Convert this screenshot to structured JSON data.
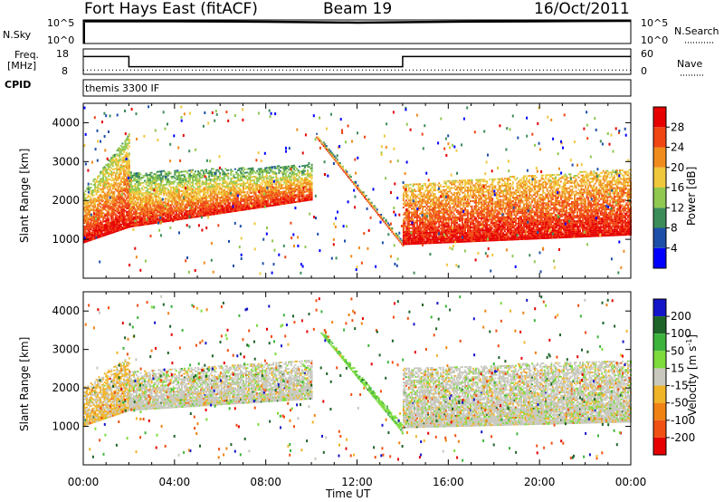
{
  "header": {
    "title": "Fort Hays East (fitACF)",
    "beam": "Beam 19",
    "date": "16/Oct/2011"
  },
  "top_panels": {
    "nsky_label": "N.Sky",
    "nsearch_label": "N.Search",
    "noise_ticks_left": [
      "10^5",
      "10^0"
    ],
    "noise_ticks_right": [
      "10^5",
      "10^0"
    ],
    "freq_label": "Freq.",
    "freq_unit": "[MHz]",
    "freq_ticks": [
      "18",
      "8"
    ],
    "nave_label": "Nave",
    "nave_ticks": [
      "60",
      "0"
    ],
    "cpid_label": "CPID",
    "cpid_text": "themis 3300 IF"
  },
  "colors": {
    "power_scale": [
      "#0000ff",
      "#1e4fa8",
      "#3c8c5a",
      "#90c850",
      "#f0c83c",
      "#f08c1e",
      "#f04614",
      "#e60000"
    ],
    "velocity_scale": [
      "#1414c8",
      "#1e6428",
      "#3cb43c",
      "#7ddc3c",
      "#c8c8be",
      "#f0b428",
      "#f08214",
      "#f05014",
      "#e60000"
    ]
  },
  "chart_data": [
    {
      "type": "line",
      "name": "noise",
      "series": [
        {
          "name": "N.Sky",
          "x": [
            "00:00",
            "04:00",
            "08:00",
            "12:00",
            "16:00",
            "20:00",
            "24:00"
          ],
          "values": [
            5.0,
            5.0,
            4.9,
            4.7,
            4.9,
            5.0,
            5.1
          ]
        },
        {
          "name": "N.Search"
        }
      ],
      "ylim": [
        0,
        5
      ]
    },
    {
      "type": "line",
      "name": "frequency",
      "series": [
        {
          "name": "Freq.",
          "x": [
            "00:00",
            "02:00",
            "02:00",
            "14:00",
            "14:00",
            "24:00"
          ],
          "values": [
            15,
            15,
            11,
            11,
            15,
            15
          ]
        },
        {
          "name": "Nave",
          "x": [
            "00:00",
            "24:00"
          ],
          "values": [
            10,
            10
          ]
        }
      ],
      "ylim_left": [
        8,
        18
      ],
      "ylim_right": [
        0,
        60
      ]
    },
    {
      "type": "heatmap",
      "name": "power",
      "xlabel": "",
      "ylabel": "Slant Range [km]",
      "y_ticks": [
        "1000",
        "2000",
        "3000",
        "4000"
      ],
      "xlim": [
        "00:00",
        "24:00"
      ],
      "ylim": [
        0,
        4500
      ],
      "colorbar_label": "Power [dB]",
      "colorbar_ticks": [
        "4",
        "8",
        "12",
        "16",
        "20",
        "24",
        "28"
      ],
      "colorbar_range": [
        0,
        32
      ],
      "bands": [
        {
          "t": [
            0.0,
            2.0
          ],
          "lower_km": [
            900,
            1300
          ],
          "upper_km": [
            2200,
            3700
          ],
          "near_db": 30,
          "far_db": 14
        },
        {
          "t": [
            2.0,
            10.0
          ],
          "lower_km": [
            1300,
            2000
          ],
          "upper_km": [
            2700,
            2900
          ],
          "near_db": 29,
          "far_db": 10
        },
        {
          "t": [
            10.2,
            14.0
          ],
          "lower_km": [
            3600,
            800
          ],
          "upper_km": [
            3700,
            900
          ],
          "near_db": 26,
          "far_db": 8
        },
        {
          "t": [
            14.0,
            24.0
          ],
          "lower_km": [
            850,
            1100
          ],
          "upper_km": [
            2400,
            2800
          ],
          "near_db": 30,
          "far_db": 18
        }
      ]
    },
    {
      "type": "heatmap",
      "name": "velocity",
      "xlabel": "Time UT",
      "ylabel": "Slant Range [km]",
      "x_ticks": [
        "00:00",
        "04:00",
        "08:00",
        "12:00",
        "16:00",
        "20:00",
        "00:00"
      ],
      "y_ticks": [
        "1000",
        "2000",
        "3000",
        "4000"
      ],
      "xlim": [
        "00:00",
        "24:00"
      ],
      "ylim": [
        0,
        4500
      ],
      "colorbar_label": "Velocity [m s",
      "colorbar_label_sup": "-1",
      "colorbar_label_end": "]",
      "colorbar_ticks": [
        "200",
        "100",
        "50",
        "15",
        "-15",
        "-50",
        "-100",
        "-200"
      ],
      "colorbar_range": [
        -250,
        250
      ],
      "bands": [
        {
          "t": [
            0.0,
            2.0
          ],
          "lower_km": [
            1000,
            1400
          ],
          "upper_km": [
            2000,
            2800
          ],
          "vel": -20
        },
        {
          "t": [
            2.0,
            10.0
          ],
          "lower_km": [
            1400,
            1700
          ],
          "upper_km": [
            2400,
            2700
          ],
          "vel": 0
        },
        {
          "t": [
            10.4,
            14.0
          ],
          "lower_km": [
            3400,
            800
          ],
          "upper_km": [
            3500,
            1000
          ],
          "vel": 40
        },
        {
          "t": [
            14.0,
            24.0
          ],
          "lower_km": [
            950,
            1100
          ],
          "upper_km": [
            2500,
            2700
          ],
          "vel": 0
        }
      ]
    }
  ]
}
